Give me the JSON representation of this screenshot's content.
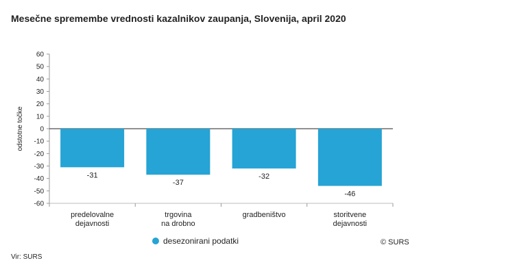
{
  "chart_data": {
    "type": "bar",
    "title": "Mesečne spremembe vrednosti kazalnikov zaupanja, Slovenija, april 2020",
    "ylabel": "odstotne točke",
    "xlabel": "",
    "ylim": [
      -60,
      60
    ],
    "yticks": [
      60,
      50,
      40,
      30,
      20,
      10,
      0,
      -10,
      -20,
      -30,
      -40,
      -50,
      -60
    ],
    "categories": [
      [
        "predelovalne",
        "dejavnosti"
      ],
      [
        "trgovina",
        "na drobno"
      ],
      [
        "gradbeništvo"
      ],
      [
        "storitvene",
        "dejavnosti"
      ]
    ],
    "series": [
      {
        "name": "desezonirani podatki",
        "values": [
          -31,
          -37,
          -32,
          -46
        ],
        "color": "#26a4d5"
      }
    ],
    "legend_position": "bottom",
    "grid": false
  },
  "legend": {
    "label": "desezonirani podatki",
    "color": "#26a4d5"
  },
  "copyright": "© SURS",
  "source": "Vir: SURS"
}
